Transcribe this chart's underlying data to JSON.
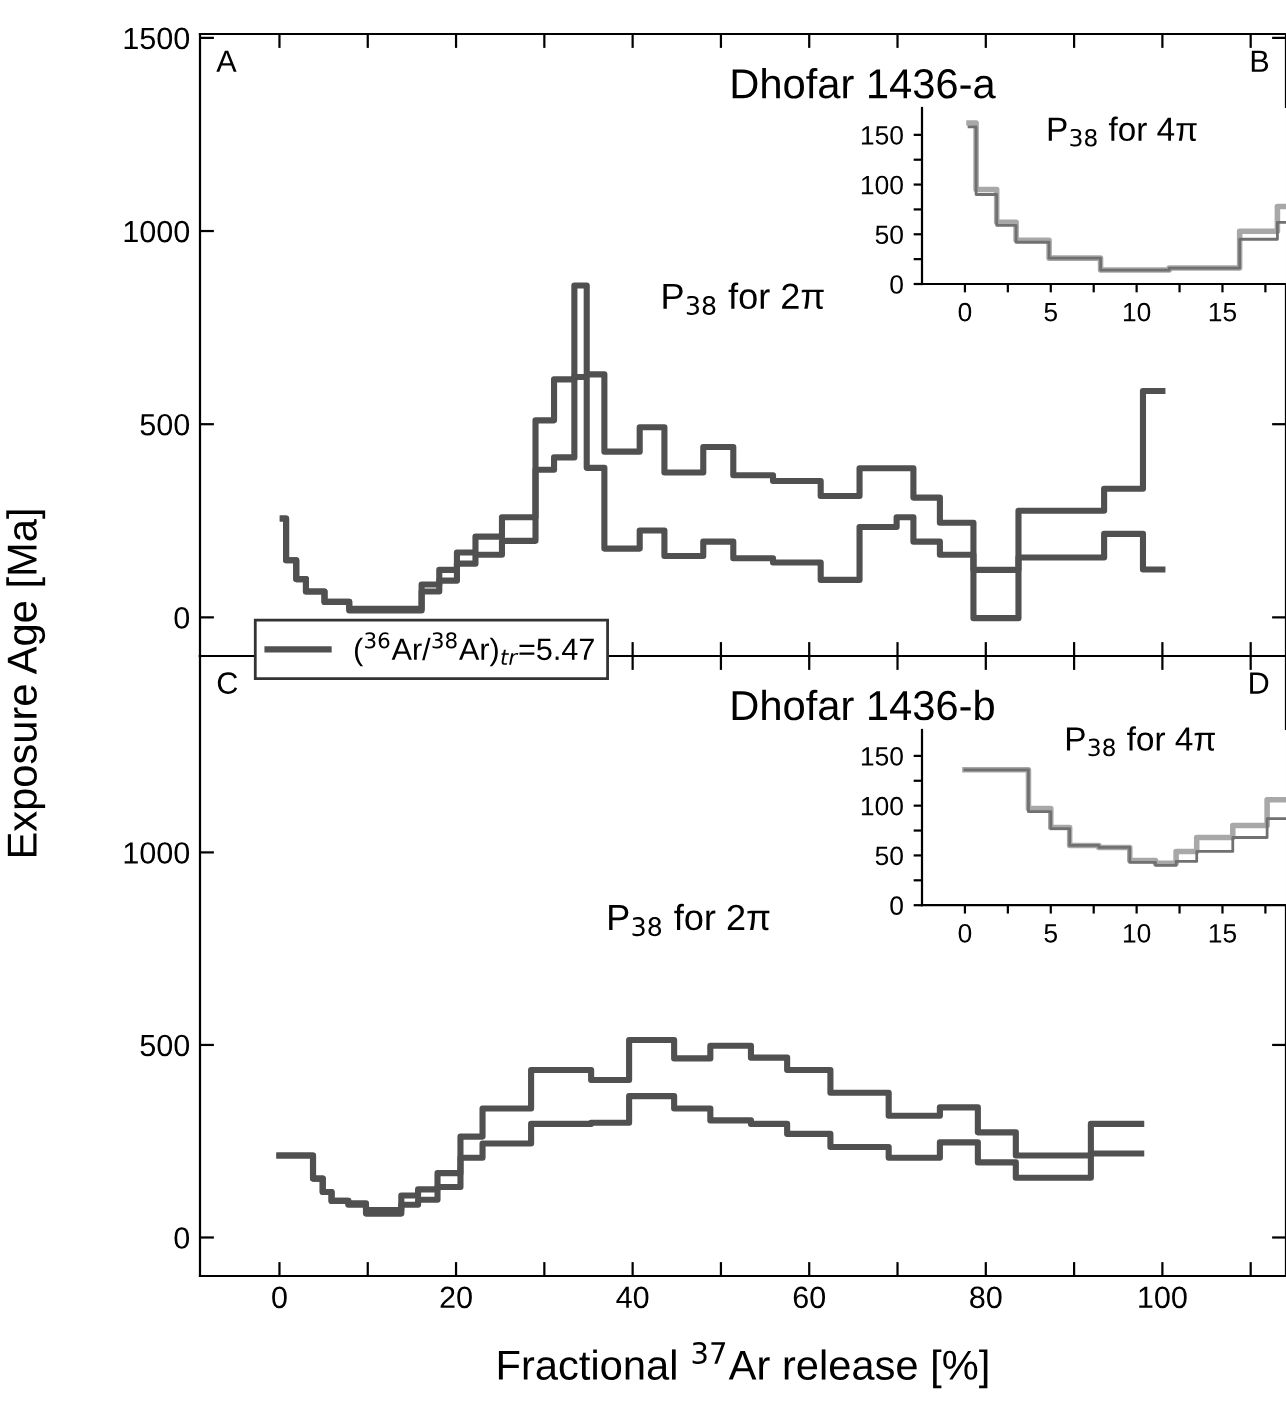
{
  "chart_data": [
    {
      "type": "step",
      "title": "Dhofar 1436-a",
      "ylabel": "Exposure Age [Ma]",
      "annotations": [
        "A",
        "B",
        "P$_{38}$ for 2π"
      ],
      "xlim": [
        -9,
        114
      ],
      "ylim": [
        -100,
        1510
      ],
      "xticks": [
        0,
        {
          "value": 10,
          "label": null
        },
        20,
        {
          "value": 30,
          "label": null
        },
        40,
        {
          "value": 50,
          "label": null
        },
        60,
        {
          "value": 70,
          "label": null
        },
        80,
        {
          "value": 90,
          "label": null
        },
        100,
        {
          "value": 110,
          "label": null
        }
      ],
      "yticks": [
        0,
        500,
        1000,
        1500
      ],
      "tick_labels": "y",
      "legend": "bottom left",
      "line_style": "solid",
      "series": [
        {
          "name": "($^{36}$Ar/$^{38}$Ar)$_{tr}$=5.47",
          "color": "#505050",
          "x": [
            0.38,
            0.75,
            1.9,
            3.0,
            5.1,
            7.9,
            11.7,
            16.1,
            18.1,
            20.1,
            22.2,
            25.2,
            29.0,
            31.1,
            33.4,
            34.8,
            36.8,
            40.8,
            43.6,
            48.0,
            51.4,
            55.9,
            61.3,
            65.7,
            69.9,
            71.8,
            74.8,
            78.6,
            83.7,
            93.4,
            97.8,
            100
          ],
          "values": [
            256,
            148,
            99,
            67,
            40,
            22,
            22,
            85,
            123,
            168,
            209,
            259,
            510,
            616,
            859,
            629,
            429,
            492,
            375,
            441,
            368,
            353,
            314,
            386,
            386,
            310,
            245,
            123,
            276,
            333,
            586,
            586
          ]
        },
        {
          "color": "#505050",
          "x": [
            0.38,
            0.75,
            1.9,
            3.0,
            5.1,
            7.9,
            11.7,
            16.1,
            18.1,
            20.1,
            22.2,
            25.2,
            29.0,
            31.1,
            33.4,
            34.8,
            36.8,
            40.8,
            43.6,
            48.0,
            51.4,
            55.9,
            61.3,
            65.7,
            69.9,
            71.8,
            74.8,
            78.6,
            83.7,
            93.4,
            97.8,
            100
          ],
          "values": [
            256,
            148,
            99,
            67,
            40,
            18,
            18,
            67,
            95,
            139,
            162,
            198,
            382,
            414,
            622,
            387,
            178,
            225,
            159,
            196,
            153,
            142,
            97,
            234,
            259,
            196,
            162,
            -2,
            155,
            216,
            124,
            124
          ]
        }
      ]
    },
    {
      "type": "step",
      "annotations": [
        "P$_{38}$ for 4π"
      ],
      "xlim": [
        -2.5,
        18.7
      ],
      "ylim": [
        0,
        177
      ],
      "xticks": [
        0,
        {
          "value": 2.5,
          "label": null
        },
        5,
        {
          "value": 7.5,
          "label": null
        },
        10,
        {
          "value": 12.5,
          "label": null
        },
        15,
        {
          "value": 17.5,
          "label": null
        }
      ],
      "yticks": [
        0,
        {
          "value": 25,
          "label": null
        },
        50,
        {
          "value": 75,
          "label": null
        },
        100,
        {
          "value": 125,
          "label": null
        },
        150
      ],
      "series": [
        {
          "color": "#a8a8a8",
          "x": [
            0.24,
            0.65,
            1.85,
            2.98,
            4.9,
            7.9,
            11.9,
            16.0,
            18.2,
            18.7
          ],
          "values": [
            162,
            95,
            62,
            44,
            26,
            14,
            16,
            53,
            78,
            78
          ]
        },
        {
          "color": "#707070",
          "x": [
            0.24,
            0.65,
            1.85,
            2.98,
            4.9,
            7.9,
            11.9,
            16.0,
            18.2,
            18.7
          ],
          "values": [
            158,
            90,
            59,
            42,
            26,
            14,
            16,
            45,
            62,
            62
          ]
        }
      ]
    },
    {
      "type": "step",
      "title": "Dhofar 1436-b",
      "xlabel": "Fractional $^{37}$Ar release [%]",
      "annotations": [
        "C",
        "D",
        "P$_{38}$ for 2π"
      ],
      "xlim": [
        -9,
        114
      ],
      "ylim": [
        -100,
        1510
      ],
      "xticks": [
        0,
        {
          "value": 10,
          "label": null
        },
        20,
        {
          "value": 30,
          "label": null
        },
        40,
        {
          "value": 50,
          "label": null
        },
        60,
        {
          "value": 70,
          "label": null
        },
        80,
        {
          "value": 90,
          "label": null
        },
        100,
        {
          "value": 110,
          "label": null
        }
      ],
      "yticks": [
        0,
        500,
        1000
      ],
      "line_style": "solid",
      "series": [
        {
          "color": "#505050",
          "x": [
            0,
            3.8,
            4.9,
            5.9,
            7.8,
            9.8,
            13.8,
            15.7,
            17.9,
            20.5,
            23.0,
            28.5,
            35.3,
            39.6,
            44.7,
            48.8,
            53.4,
            57.5,
            62.4,
            69.0,
            74.8,
            79.1,
            83.4,
            91.9,
            97.6
          ],
          "values": [
            213,
            153,
            118,
            95,
            89,
            71,
            109,
            125,
            167,
            262,
            335,
            435,
            409,
            513,
            465,
            498,
            467,
            435,
            376,
            316,
            338,
            273,
            213,
            295,
            295
          ]
        },
        {
          "color": "#505050",
          "x": [
            0,
            3.8,
            4.9,
            5.9,
            7.8,
            9.8,
            13.8,
            15.7,
            17.9,
            20.5,
            23.0,
            28.5,
            35.3,
            39.6,
            44.7,
            48.8,
            53.4,
            57.5,
            62.4,
            69.0,
            74.8,
            79.1,
            83.4,
            91.9,
            97.6
          ],
          "values": [
            213,
            153,
            118,
            95,
            85,
            62,
            85,
            98,
            131,
            207,
            244,
            295,
            298,
            367,
            335,
            304,
            295,
            269,
            235,
            207,
            247,
            195,
            155,
            218,
            218
          ]
        }
      ]
    },
    {
      "type": "step",
      "annotations": [
        "P$_{38}$ for 4π"
      ],
      "xlim": [
        -2.5,
        18.7
      ],
      "ylim": [
        0,
        176
      ],
      "xticks": [
        0,
        {
          "value": 2.5,
          "label": null
        },
        5,
        {
          "value": 7.5,
          "label": null
        },
        10,
        {
          "value": 12.5,
          "label": null
        },
        15,
        {
          "value": 17.5,
          "label": null
        }
      ],
      "yticks": [
        0,
        {
          "value": 25,
          "label": null
        },
        50,
        {
          "value": 75,
          "label": null
        },
        100,
        {
          "value": 125,
          "label": null
        },
        150
      ],
      "series": [
        {
          "color": "#a8a8a8",
          "x": [
            0,
            3.7,
            5.0,
            6.1,
            7.8,
            9.6,
            11.1,
            12.3,
            13.5,
            15.6,
            17.6,
            18.7
          ],
          "values": [
            136,
            97,
            78,
            60,
            58,
            45,
            42,
            54,
            68,
            80,
            106,
            106
          ]
        },
        {
          "color": "#707070",
          "x": [
            0,
            3.7,
            5.0,
            6.1,
            7.8,
            9.6,
            11.1,
            12.3,
            13.5,
            15.6,
            17.6,
            18.7
          ],
          "values": [
            136,
            94,
            77,
            60,
            58,
            43,
            40,
            44,
            54,
            68,
            87,
            87
          ]
        }
      ]
    }
  ]
}
